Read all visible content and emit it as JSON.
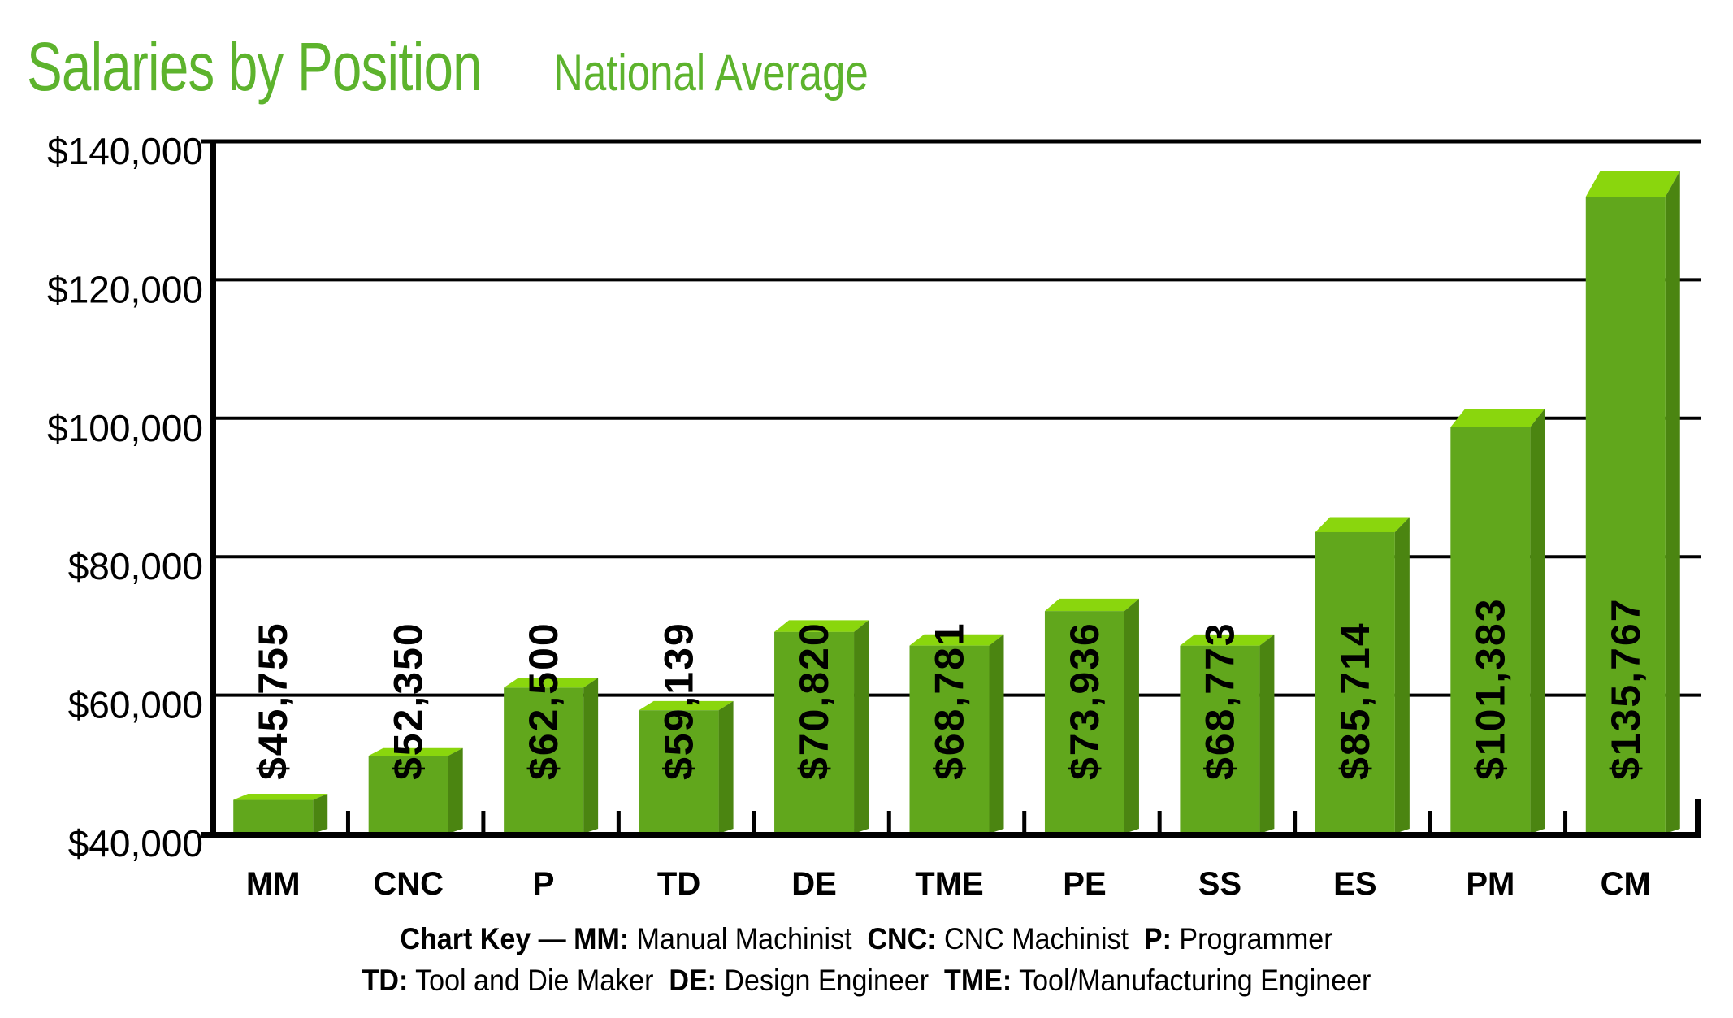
{
  "header": {
    "title": "Salaries by Position",
    "subtitle": "National Average"
  },
  "colors": {
    "title_green": "#5db32d",
    "bar_front": "#61a71c",
    "bar_top": "#8ad60d",
    "bar_side": "#4b8511",
    "axis_black": "#000000",
    "background": "#ffffff"
  },
  "chart_data": {
    "type": "bar",
    "title": "Salaries by Position",
    "subtitle": "National Average",
    "categories": [
      "MM",
      "CNC",
      "P",
      "TD",
      "DE",
      "TME",
      "PE",
      "SS",
      "ES",
      "PM",
      "CM"
    ],
    "values": [
      45755,
      52350,
      62500,
      59139,
      70820,
      68781,
      73936,
      68773,
      85714,
      101383,
      135767
    ],
    "value_labels": [
      "$45,755",
      "$52,350",
      "$62,500",
      "$59,139",
      "$70,820",
      "$68,781",
      "$73,936",
      "$68,773",
      "$85,714",
      "$101,383",
      "$135,767"
    ],
    "xlabel": "",
    "ylabel": "",
    "ylim": [
      40000,
      140000
    ],
    "y_tick_interval": 20000,
    "y_tick_labels": [
      "$140,000",
      "$120,000",
      "$100,000",
      "$80,000",
      "$60,000",
      "$40,000"
    ],
    "grid": "horizontal",
    "legend": "none",
    "bar_style": "3d"
  },
  "key": {
    "lines": [
      [
        {
          "t": "Chart Key — MM:",
          "b": true
        },
        {
          "t": " Manual Machinist  ",
          "b": false
        },
        {
          "t": "CNC:",
          "b": true
        },
        {
          "t": " CNC Machinist  ",
          "b": false
        },
        {
          "t": "P:",
          "b": true
        },
        {
          "t": " Programmer",
          "b": false
        }
      ],
      [
        {
          "t": "TD:",
          "b": true
        },
        {
          "t": " Tool and Die Maker  ",
          "b": false
        },
        {
          "t": "DE:",
          "b": true
        },
        {
          "t": " Design Engineer  ",
          "b": false
        },
        {
          "t": "TME:",
          "b": true
        },
        {
          "t": " Tool/Manufacturing Engineer",
          "b": false
        }
      ]
    ]
  }
}
